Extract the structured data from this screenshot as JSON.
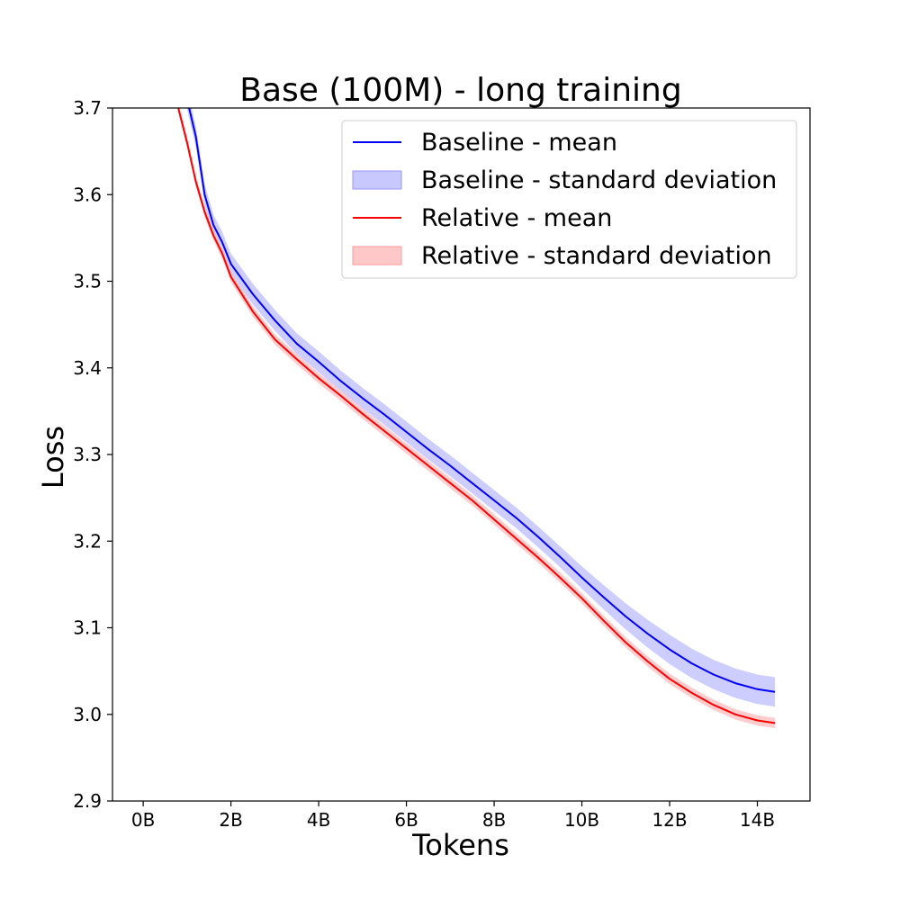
{
  "chart_data": {
    "type": "line",
    "title": "Base (100M) - long training",
    "xlabel": "Tokens",
    "ylabel": "Loss",
    "xlim": [
      -0.7,
      15.2
    ],
    "ylim": [
      2.9,
      3.7
    ],
    "x_ticks": [
      0,
      2,
      4,
      6,
      8,
      10,
      12,
      14
    ],
    "x_tick_labels": [
      "0B",
      "2B",
      "4B",
      "6B",
      "8B",
      "10B",
      "12B",
      "14B"
    ],
    "y_ticks": [
      2.9,
      3.0,
      3.1,
      3.2,
      3.3,
      3.4,
      3.5,
      3.6,
      3.7
    ],
    "y_tick_labels": [
      "2.9",
      "3.0",
      "3.1",
      "3.2",
      "3.3",
      "3.4",
      "3.5",
      "3.6",
      "3.7"
    ],
    "grid": false,
    "legend_position": "top-right",
    "x": [
      0.8,
      1.0,
      1.2,
      1.4,
      1.6,
      1.8,
      2.0,
      2.5,
      3.0,
      3.5,
      4.0,
      4.5,
      5.0,
      5.5,
      6.0,
      6.5,
      7.0,
      7.5,
      8.0,
      8.5,
      9.0,
      9.5,
      10.0,
      10.5,
      11.0,
      11.5,
      12.0,
      12.5,
      13.0,
      13.5,
      14.0,
      14.4
    ],
    "series": [
      {
        "name": "Baseline - mean",
        "color": "#0000ff",
        "band_color": "#c8c8ff",
        "values": [
          3.77,
          3.71,
          3.667,
          3.6,
          3.565,
          3.545,
          3.52,
          3.485,
          3.455,
          3.428,
          3.407,
          3.385,
          3.365,
          3.346,
          3.326,
          3.306,
          3.287,
          3.267,
          3.247,
          3.227,
          3.205,
          3.182,
          3.158,
          3.135,
          3.113,
          3.093,
          3.075,
          3.059,
          3.046,
          3.036,
          3.029,
          3.026
        ],
        "std": [
          0.012,
          0.012,
          0.012,
          0.012,
          0.012,
          0.012,
          0.012,
          0.012,
          0.012,
          0.012,
          0.012,
          0.012,
          0.012,
          0.012,
          0.012,
          0.012,
          0.012,
          0.012,
          0.012,
          0.012,
          0.012,
          0.012,
          0.013,
          0.014,
          0.015,
          0.016,
          0.017,
          0.017,
          0.017,
          0.017,
          0.017,
          0.017
        ]
      },
      {
        "name": "Relative - mean",
        "color": "#ff0000",
        "band_color": "#ffc8c8",
        "values": [
          3.7,
          3.66,
          3.615,
          3.58,
          3.553,
          3.532,
          3.505,
          3.465,
          3.433,
          3.41,
          3.388,
          3.368,
          3.347,
          3.327,
          3.307,
          3.287,
          3.267,
          3.247,
          3.225,
          3.203,
          3.181,
          3.158,
          3.134,
          3.108,
          3.083,
          3.061,
          3.041,
          3.025,
          3.011,
          3.0,
          2.993,
          2.99
        ],
        "std": [
          0.006,
          0.006,
          0.006,
          0.006,
          0.006,
          0.006,
          0.006,
          0.006,
          0.006,
          0.006,
          0.006,
          0.006,
          0.006,
          0.006,
          0.006,
          0.006,
          0.006,
          0.006,
          0.006,
          0.006,
          0.006,
          0.006,
          0.006,
          0.006,
          0.006,
          0.006,
          0.006,
          0.006,
          0.006,
          0.006,
          0.006,
          0.006
        ]
      }
    ],
    "legend": [
      {
        "label": "Baseline - mean",
        "kind": "line",
        "color": "#0000ff"
      },
      {
        "label": "Baseline - standard deviation",
        "kind": "patch",
        "color": "#c8c8ff",
        "edge": "#9999ff"
      },
      {
        "label": "Relative - mean",
        "kind": "line",
        "color": "#ff0000"
      },
      {
        "label": "Relative - standard deviation",
        "kind": "patch",
        "color": "#ffc8c8",
        "edge": "#ff9999"
      }
    ]
  }
}
